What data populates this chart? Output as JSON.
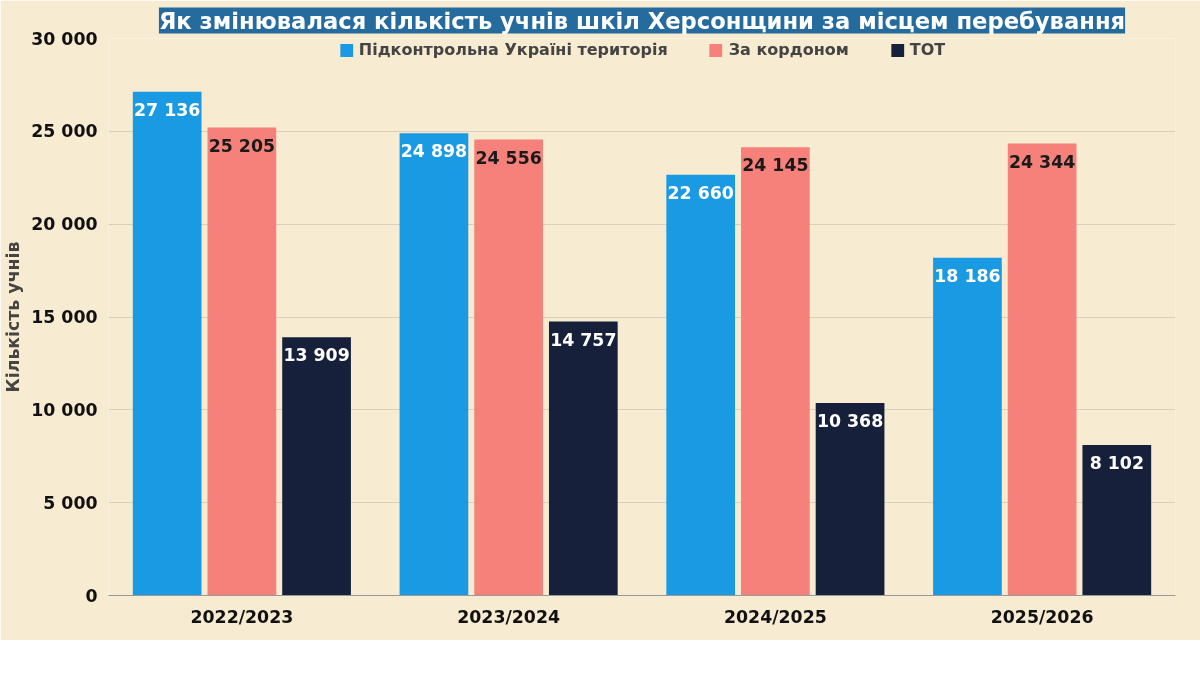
{
  "chart_data": {
    "type": "bar",
    "title": "Як змінювалася кількість учнів шкіл Херсонщини за місцем перебування",
    "ylabel": "Кількість учнів",
    "categories": [
      "2022/2023",
      "2023/2024",
      "2024/2025",
      "2025/2026"
    ],
    "series": [
      {
        "name": "Підконтрольна Україні територія",
        "color": "#1b9ae4",
        "values": [
          27136,
          24898,
          22660,
          18186
        ]
      },
      {
        "name": "За кордоном",
        "color": "#f5817a",
        "values": [
          25205,
          24556,
          24145,
          24344
        ]
      },
      {
        "name": "ТОТ",
        "color": "#17203a",
        "values": [
          13909,
          14757,
          10368,
          8102
        ]
      }
    ],
    "ylim": [
      0,
      30000
    ],
    "yticks": [
      {
        "value": 0,
        "label": "0"
      },
      {
        "value": 5000,
        "label": "5 000"
      },
      {
        "value": 10000,
        "label": "10 000"
      },
      {
        "value": 15000,
        "label": "15 000"
      },
      {
        "value": 20000,
        "label": "20 000"
      },
      {
        "value": 25000,
        "label": "25 000"
      },
      {
        "value": 30000,
        "label": "30 000"
      }
    ],
    "grid": "y",
    "legend": "top",
    "data_labels": true
  }
}
